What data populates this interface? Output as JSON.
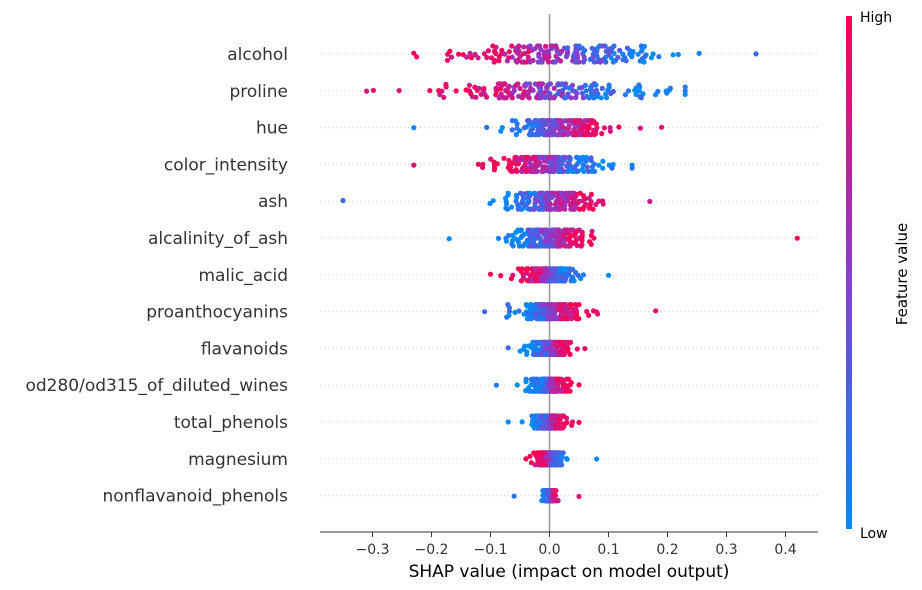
{
  "chart_data": {
    "type": "scatter",
    "subtype": "shap-beeswarm",
    "title": "",
    "xlabel": "SHAP value (impact on model output)",
    "ylabel": "",
    "xlim": [
      -0.39,
      0.455
    ],
    "xticks": [
      -0.3,
      -0.2,
      -0.1,
      0.0,
      0.1,
      0.2,
      0.3,
      0.4
    ],
    "xtick_labels": [
      "−0.3",
      "−0.2",
      "−0.1",
      "0.0",
      "0.1",
      "0.2",
      "0.3",
      "0.4"
    ],
    "grid": false,
    "legend": "none",
    "colorbar": {
      "label": "Feature value",
      "high_label": "High",
      "low_label": "Low",
      "high_color": "#ff0052",
      "mid_color": "#8a3ccf",
      "low_color": "#008bfb",
      "placement": "right"
    },
    "features": [
      {
        "name": "alcohol",
        "min": -0.23,
        "max": 0.35,
        "center": 0.02,
        "spread": 0.17,
        "width": 8,
        "corr": -1
      },
      {
        "name": "proline",
        "min": -0.31,
        "max": 0.23,
        "center": 0.0,
        "spread": 0.16,
        "width": 7,
        "corr": -1
      },
      {
        "name": "hue",
        "min": -0.23,
        "max": 0.19,
        "center": 0.01,
        "spread": 0.08,
        "width": 7,
        "corr": 1
      },
      {
        "name": "color_intensity",
        "min": -0.23,
        "max": 0.14,
        "center": -0.01,
        "spread": 0.09,
        "width": 7,
        "corr": -1
      },
      {
        "name": "ash",
        "min": -0.35,
        "max": 0.17,
        "center": 0.0,
        "spread": 0.07,
        "width": 8,
        "corr": 1
      },
      {
        "name": "alcalinity_of_ash",
        "min": -0.17,
        "max": 0.42,
        "center": 0.0,
        "spread": 0.06,
        "width": 8,
        "corr": 1
      },
      {
        "name": "malic_acid",
        "min": -0.1,
        "max": 0.1,
        "center": 0.0,
        "spread": 0.04,
        "width": 6,
        "corr": -1
      },
      {
        "name": "proanthocyanins",
        "min": -0.11,
        "max": 0.18,
        "center": 0.0,
        "spread": 0.05,
        "width": 7,
        "corr": 1
      },
      {
        "name": "flavanoids",
        "min": -0.07,
        "max": 0.06,
        "center": 0.0,
        "spread": 0.03,
        "width": 6,
        "corr": 1
      },
      {
        "name": "od280/od315_of_diluted_wines",
        "min": -0.09,
        "max": 0.05,
        "center": 0.0,
        "spread": 0.03,
        "width": 6,
        "corr": 1
      },
      {
        "name": "total_phenols",
        "min": -0.07,
        "max": 0.05,
        "center": 0.0,
        "spread": 0.025,
        "width": 6,
        "corr": 1
      },
      {
        "name": "magnesium",
        "min": -0.04,
        "max": 0.08,
        "center": 0.0,
        "spread": 0.02,
        "width": 6,
        "corr": -1
      },
      {
        "name": "nonflavanoid_phenols",
        "min": -0.06,
        "max": 0.05,
        "center": 0.0,
        "spread": 0.008,
        "width": 5,
        "corr": 1
      }
    ],
    "points_per_feature": 178
  }
}
